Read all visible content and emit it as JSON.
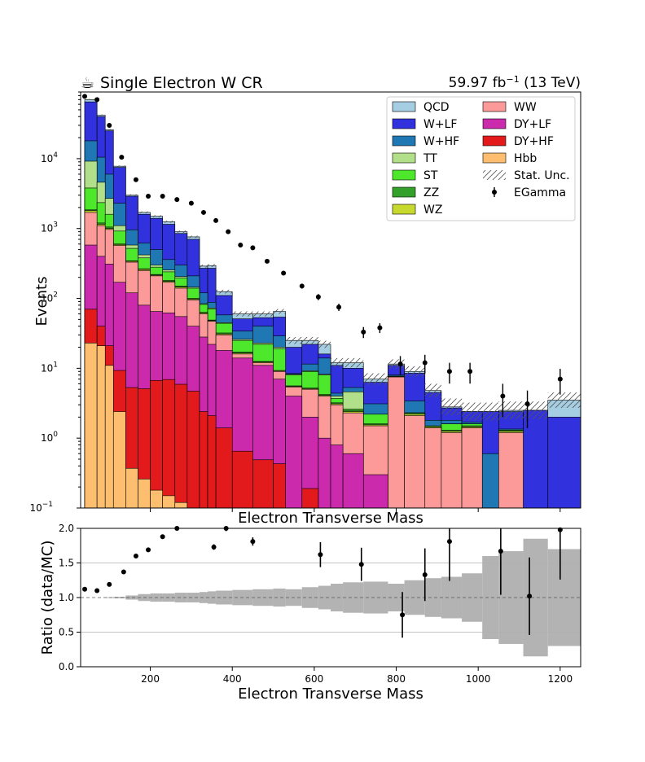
{
  "header": {
    "title_icon": "coffee-icon",
    "title": "Single Electron W CR",
    "lumi_value": "59.97 fb",
    "lumi_exponent": "−1",
    "lumi_suffix": " (13 TeV)"
  },
  "chart_data": [
    {
      "type": "histogram-stack",
      "title": "Single Electron W CR",
      "xlabel": "Electron Transverse Mass",
      "ylabel": "Events",
      "xlim": [
        30,
        1250
      ],
      "ylim": [
        0.1,
        90000
      ],
      "yscale": "log",
      "bin_edges": [
        40,
        70,
        90,
        110,
        140,
        170,
        200,
        230,
        260,
        290,
        320,
        340,
        360,
        400,
        450,
        500,
        530,
        570,
        610,
        640,
        670,
        720,
        780,
        820,
        870,
        910,
        960,
        1010,
        1050,
        1110,
        1170,
        1250
      ],
      "legend_position": "top-right",
      "series": [
        {
          "name": "Hbb",
          "color": "#fdbf6f",
          "values": [
            23,
            21,
            11,
            2.4,
            0.37,
            0.26,
            0.18,
            0.15,
            0.12,
            0.1,
            0.1,
            0.1,
            0.1,
            0.1,
            0.1,
            0.1,
            0.1,
            0.1,
            0.1,
            0.1,
            0.1,
            0.1,
            0.1,
            0.1,
            0.1,
            0.1,
            0.1,
            0.1,
            0.1,
            0.1,
            0.1
          ]
        },
        {
          "name": "DY+HF",
          "color": "#e31a1c",
          "values": [
            70,
            40,
            21,
            9.3,
            5.3,
            5.1,
            6.7,
            6.9,
            5.9,
            4.7,
            2.4,
            2.1,
            1.4,
            0.65,
            0.49,
            0.43,
            0.1,
            0.19,
            0.1,
            0.1,
            0.1,
            0.1,
            0.1,
            0.1,
            0.1,
            0.1,
            0.1,
            0.1,
            0.1,
            0.1,
            0.1
          ]
        },
        {
          "name": "DY+LF",
          "color": "#cc2aad",
          "values": [
            580,
            400,
            310,
            170,
            120,
            80,
            65,
            62,
            55,
            40,
            28,
            22,
            18,
            14,
            11,
            7,
            4,
            2,
            1,
            0.8,
            0.6,
            0.3,
            0.1,
            0.1,
            0.1,
            0.1,
            0.1,
            0.1,
            0.1,
            0.1,
            0.1
          ]
        },
        {
          "name": "WW",
          "color": "#fb9a99",
          "values": [
            1700,
            1100,
            970,
            570,
            330,
            250,
            210,
            170,
            140,
            95,
            60,
            47,
            30,
            16,
            12,
            9,
            5.4,
            5,
            4,
            3,
            2.3,
            1.5,
            7.5,
            2.1,
            1.4,
            1.2,
            1.4,
            0.1,
            1.2,
            0.1,
            0.1
          ]
        },
        {
          "name": "WZ",
          "color": "#c7d82e",
          "values": [
            1800,
            1150,
            1000,
            590,
            340,
            260,
            215,
            175,
            145,
            98,
            62,
            48,
            31,
            16.5,
            12.3,
            9.2,
            5.5,
            5.1,
            4.1,
            3.1,
            2.4,
            1.55,
            7.6,
            2.2,
            1.45,
            1.25,
            1.45,
            0.1,
            1.25,
            0.1,
            0.1
          ]
        },
        {
          "name": "ZZ",
          "color": "#33a02c",
          "values": [
            1850,
            1200,
            1050,
            600,
            345,
            265,
            220,
            180,
            150,
            100,
            63,
            49,
            32,
            17,
            12.5,
            9.3,
            5.6,
            5.2,
            4.2,
            3.2,
            2.5,
            1.6,
            7.7,
            2.3,
            1.5,
            1.3,
            1.5,
            0.1,
            1.3,
            0.1,
            0.1
          ]
        },
        {
          "name": "ST",
          "color": "#4de82c",
          "values": [
            3800,
            2350,
            1600,
            920,
            520,
            380,
            280,
            240,
            195,
            140,
            82,
            71,
            44,
            25,
            22,
            19,
            8,
            9,
            8,
            3.7,
            2.6,
            2.2,
            7.7,
            2.3,
            0.43,
            1.6,
            1.6,
            0.1,
            1.3,
            0.1,
            0.1
          ]
        },
        {
          "name": "TT",
          "color": "#b2df8a",
          "values": [
            9200,
            4600,
            2700,
            1100,
            580,
            420,
            300,
            255,
            205,
            145,
            84,
            73,
            45,
            26,
            23,
            20,
            8.2,
            9.2,
            8.2,
            4,
            4.6,
            2.2,
            7.7,
            2.3,
            0.43,
            1.6,
            1.6,
            0.1,
            1.3,
            0.1,
            0.1
          ]
        },
        {
          "name": "W+HF",
          "color": "#1f78b4",
          "values": [
            18000,
            10500,
            6000,
            2300,
            960,
            620,
            500,
            360,
            300,
            210,
            120,
            88,
            58,
            34,
            40,
            29,
            8.4,
            11.5,
            14,
            4.4,
            5.3,
            3.1,
            8,
            3.4,
            1.8,
            1.8,
            1.7,
            0.6,
            1.35,
            0.1,
            0.1
          ]
        },
        {
          "name": "W+LF",
          "color": "#3131de",
          "values": [
            65000,
            40000,
            25000,
            7500,
            2900,
            1600,
            1400,
            1150,
            850,
            700,
            270,
            270,
            110,
            51,
            53,
            54,
            20,
            22,
            16,
            11,
            10,
            6.3,
            11,
            8.5,
            4.5,
            2.7,
            2.4,
            2.4,
            2.4,
            2.5,
            2
          ]
        },
        {
          "name": "QCD",
          "color": "#a6cee3",
          "values": [
            70000,
            42000,
            26000,
            7800,
            3000,
            1700,
            1500,
            1250,
            900,
            760,
            290,
            295,
            125,
            60,
            60,
            65,
            25,
            25,
            22,
            12,
            12,
            7,
            11.5,
            9,
            4.8,
            2.8,
            2.4,
            2.4,
            2.5,
            2.5,
            3.5
          ]
        }
      ],
      "stat_unc": {
        "name": "Stat. Unc.",
        "hatch": "////"
      },
      "data_points": {
        "name": "EGamma",
        "x": [
          40,
          70,
          100,
          130,
          165,
          195,
          230,
          265,
          300,
          330,
          360,
          390,
          420,
          450,
          485,
          525,
          570,
          610,
          660,
          720,
          760,
          810,
          870,
          930,
          980,
          1060,
          1120,
          1200
        ],
        "y": [
          78000,
          70000,
          30000,
          10500,
          5000,
          2900,
          2900,
          2600,
          2300,
          1700,
          1300,
          900,
          580,
          530,
          340,
          230,
          150,
          105,
          75,
          33,
          38,
          11.5,
          12,
          9,
          9,
          4,
          3.1,
          7
        ],
        "yerr_frac": [
          0.01,
          0.01,
          0.01,
          0.01,
          0.015,
          0.02,
          0.02,
          0.02,
          0.02,
          0.02,
          0.03,
          0.03,
          0.04,
          0.04,
          0.05,
          0.07,
          0.08,
          0.1,
          0.12,
          0.18,
          0.16,
          0.3,
          0.3,
          0.33,
          0.33,
          0.5,
          0.55,
          0.4
        ]
      }
    },
    {
      "type": "scatter",
      "xlabel": "Electron Transverse Mass",
      "ylabel": "Ratio (data/MC)",
      "top_xlabel": "Electron Transverse Mass",
      "xlim": [
        30,
        1250
      ],
      "ylim": [
        0.0,
        2.0
      ],
      "yticks": [
        0.0,
        0.5,
        1.0,
        1.5,
        2.0
      ],
      "xticks": [
        200,
        400,
        600,
        800,
        1000,
        1200
      ],
      "reference_line": 1.0,
      "gridlines": [
        0.5,
        1.5
      ],
      "points": {
        "x": [
          40,
          70,
          100,
          135,
          165,
          195,
          230,
          265,
          355,
          385,
          450,
          615,
          715,
          815,
          870,
          930,
          1055,
          1125,
          1200
        ],
        "y": [
          1.12,
          1.1,
          1.19,
          1.37,
          1.6,
          1.69,
          1.88,
          2.0,
          1.73,
          2.0,
          1.81,
          1.62,
          1.48,
          0.75,
          1.33,
          1.81,
          1.67,
          1.02,
          1.98
        ],
        "yerr": [
          0.005,
          0.005,
          0.005,
          0.01,
          0.01,
          0.015,
          0.02,
          0.02,
          0.04,
          0.04,
          0.06,
          0.18,
          0.24,
          0.33,
          0.38,
          0.57,
          0.63,
          0.56,
          0.72
        ]
      },
      "unc_band": {
        "color": "#b3b3b3",
        "bin_edges": [
          40,
          70,
          90,
          110,
          140,
          170,
          200,
          230,
          260,
          290,
          320,
          340,
          360,
          400,
          450,
          500,
          530,
          570,
          610,
          640,
          670,
          720,
          780,
          820,
          870,
          910,
          960,
          1010,
          1050,
          1110,
          1170,
          1250
        ],
        "half_width": [
          0.0,
          0.0,
          0.005,
          0.01,
          0.03,
          0.05,
          0.06,
          0.06,
          0.07,
          0.07,
          0.08,
          0.09,
          0.1,
          0.11,
          0.12,
          0.13,
          0.12,
          0.15,
          0.17,
          0.2,
          0.22,
          0.23,
          0.2,
          0.25,
          0.28,
          0.3,
          0.35,
          0.6,
          0.67,
          0.85,
          0.7
        ]
      }
    }
  ]
}
